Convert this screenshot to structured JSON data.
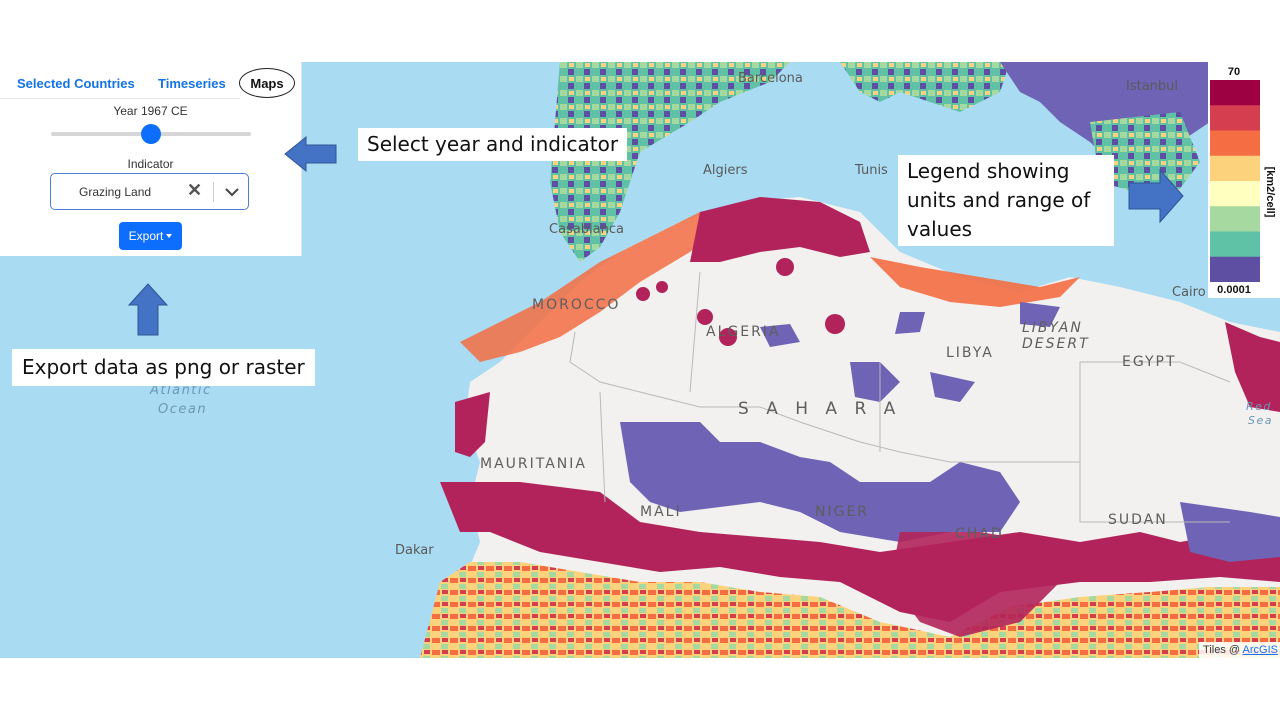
{
  "tabs": {
    "selected_countries": "Selected Countries",
    "timeseries": "Timeseries",
    "maps": "Maps"
  },
  "controls": {
    "year_label": "Year 1967 CE",
    "year_slider_fraction": 0.5,
    "indicator_label": "Indicator",
    "indicator_value": "Grazing Land",
    "export_label": "Export"
  },
  "legend": {
    "max": "70",
    "min": "0.0001",
    "units": "[km2/cell]",
    "colors": [
      "#9e0142",
      "#d53e4f",
      "#f46d43",
      "#fdd27c",
      "#ffffbf",
      "#a6d9a0",
      "#5fc1a5",
      "#5e4fa2"
    ]
  },
  "map_labels": {
    "barcelona": "Barcelona",
    "istanbul": "Istanbul",
    "algiers": "Algiers",
    "tunis": "Tunis",
    "casablanca": "Casablanca",
    "morocco": "MOROCCO",
    "algeria": "ALGERIA",
    "libya": "LIBYA",
    "libyan_desert": [
      "LIBYAN",
      "DESERT"
    ],
    "egypt": "EGYPT",
    "cairo": "Cairo",
    "sahara": "S A H A R A",
    "mauritania": "MAURITANIA",
    "mali": "MALI",
    "niger": "NIGER",
    "chad": "CHAD",
    "sudan": "SUDAN",
    "dakar": "Dakar",
    "red_sea": [
      "Red",
      "Sea"
    ],
    "atlantic": [
      "Atlantic",
      "Ocean"
    ]
  },
  "annotations": {
    "select": "Select year and indicator",
    "export": "Export data as png or raster",
    "legend": "Legend showing units and range of values"
  },
  "attribution": {
    "prefix": "Tiles @ ",
    "link": "ArcGIS"
  },
  "colors": {
    "accent": "#0d6efd",
    "arrow": "#4472c4",
    "ocean": "#a9dbf2",
    "land": "#f2f1ef"
  }
}
